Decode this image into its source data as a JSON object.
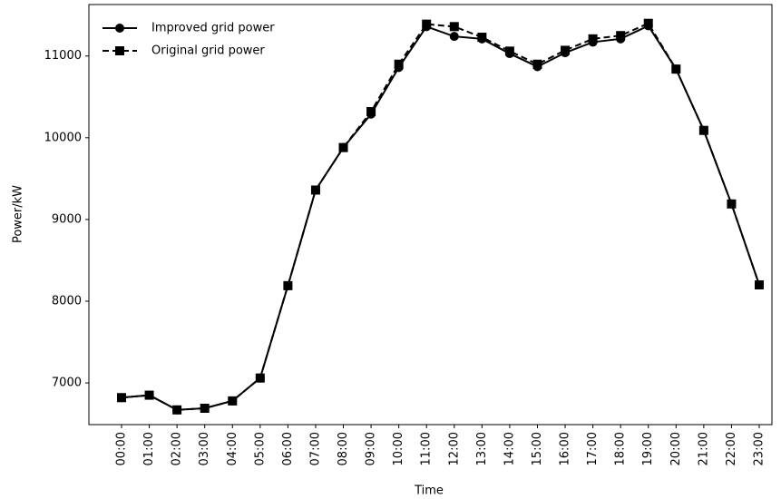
{
  "chart_data": {
    "type": "line",
    "x_label": "Time",
    "y_label": "Power/kW",
    "categories": [
      "00:00",
      "01:00",
      "02:00",
      "03:00",
      "04:00",
      "05:00",
      "06:00",
      "07:00",
      "08:00",
      "09:00",
      "10:00",
      "11:00",
      "12:00",
      "13:00",
      "14:00",
      "15:00",
      "16:00",
      "17:00",
      "18:00",
      "19:00",
      "20:00",
      "21:00",
      "22:00",
      "23:00"
    ],
    "series": [
      {
        "name": "Improved grid power",
        "color": "#000000",
        "marker": "circle",
        "dashed": false,
        "values": [
          6820,
          6850,
          6670,
          6690,
          6780,
          7060,
          8190,
          9360,
          9880,
          10290,
          10860,
          11360,
          11240,
          11210,
          11030,
          10870,
          11040,
          11170,
          11210,
          11370,
          10840,
          10090,
          9190,
          8200
        ]
      },
      {
        "name": "Original grid power",
        "color": "#000000",
        "marker": "square",
        "dashed": true,
        "values": [
          6820,
          6850,
          6670,
          6690,
          6780,
          7060,
          8190,
          9360,
          9880,
          10320,
          10900,
          11390,
          11360,
          11230,
          11060,
          10900,
          11070,
          11210,
          11250,
          11400,
          10840,
          10090,
          9190,
          8200
        ]
      }
    ],
    "ylim": [
      6490,
      11630
    ],
    "yticks": [
      7000,
      8000,
      9000,
      10000,
      11000
    ],
    "legend": "upper left",
    "grid": false
  }
}
